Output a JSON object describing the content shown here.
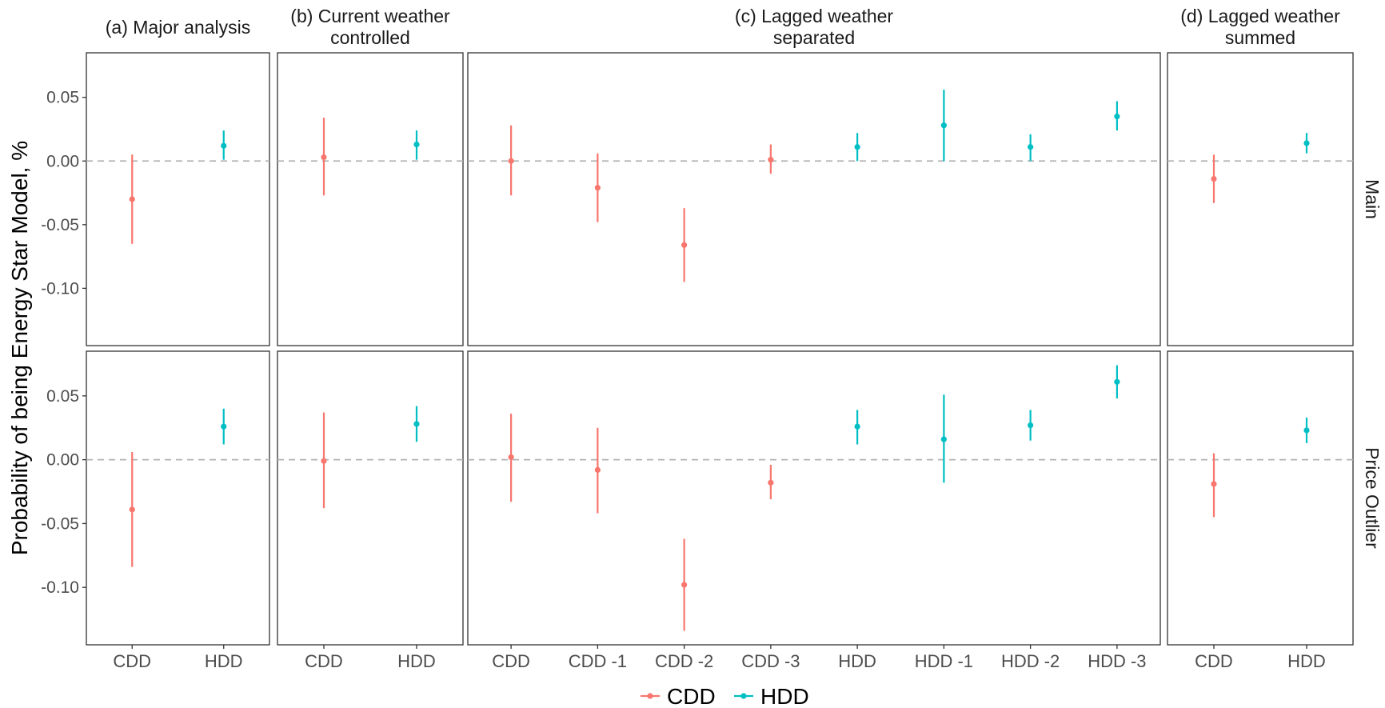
{
  "chart_data": {
    "type": "scatter",
    "style": "pointrange",
    "ylabel": "Probability of being Energy Star Model, %",
    "xlabel": "",
    "ylim": [
      -0.145,
      0.085
    ],
    "yticks": [
      -0.1,
      -0.05,
      0.0,
      0.05
    ],
    "ytick_labels": [
      "-0.10",
      "-0.05",
      "0.00",
      "0.05"
    ],
    "reference_line": {
      "y": 0,
      "style": "dashed",
      "color": "#b3b3b3"
    },
    "grid": false,
    "legend": {
      "position": "bottom",
      "entries": [
        "CDD",
        "HDD"
      ]
    },
    "colors": {
      "CDD": "#F8766D",
      "HDD": "#00BFC4"
    },
    "rows": [
      "Main",
      "Price Outlier"
    ],
    "panels": [
      {
        "title": [
          "(a) Major analysis"
        ],
        "categories": [
          "CDD",
          "HDD"
        ],
        "groups": [
          "CDD",
          "HDD"
        ],
        "data": {
          "Main": [
            {
              "est": -0.03,
              "lo": -0.065,
              "hi": 0.005
            },
            {
              "est": 0.012,
              "lo": 0.001,
              "hi": 0.024
            }
          ],
          "Price Outlier": [
            {
              "est": -0.039,
              "lo": -0.084,
              "hi": 0.006
            },
            {
              "est": 0.026,
              "lo": 0.012,
              "hi": 0.04
            }
          ]
        }
      },
      {
        "title": [
          "(b) Current weather",
          "controlled"
        ],
        "categories": [
          "CDD",
          "HDD"
        ],
        "groups": [
          "CDD",
          "HDD"
        ],
        "data": {
          "Main": [
            {
              "est": 0.003,
              "lo": -0.027,
              "hi": 0.034
            },
            {
              "est": 0.013,
              "lo": 0.001,
              "hi": 0.024
            }
          ],
          "Price Outlier": [
            {
              "est": -0.001,
              "lo": -0.038,
              "hi": 0.037
            },
            {
              "est": 0.028,
              "lo": 0.014,
              "hi": 0.042
            }
          ]
        }
      },
      {
        "title": [
          "(c) Lagged weather",
          "separated"
        ],
        "categories": [
          "CDD",
          "CDD -1",
          "CDD -2",
          "CDD -3",
          "HDD",
          "HDD -1",
          "HDD -2",
          "HDD -3"
        ],
        "groups": [
          "CDD",
          "CDD",
          "CDD",
          "CDD",
          "HDD",
          "HDD",
          "HDD",
          "HDD"
        ],
        "data": {
          "Main": [
            {
              "est": 0.0,
              "lo": -0.027,
              "hi": 0.028
            },
            {
              "est": -0.021,
              "lo": -0.048,
              "hi": 0.006
            },
            {
              "est": -0.066,
              "lo": -0.095,
              "hi": -0.037
            },
            {
              "est": 0.001,
              "lo": -0.01,
              "hi": 0.013
            },
            {
              "est": 0.011,
              "lo": 0.0,
              "hi": 0.022
            },
            {
              "est": 0.028,
              "lo": 0.0,
              "hi": 0.056
            },
            {
              "est": 0.011,
              "lo": 0.0,
              "hi": 0.021
            },
            {
              "est": 0.035,
              "lo": 0.024,
              "hi": 0.047
            }
          ],
          "Price Outlier": [
            {
              "est": 0.002,
              "lo": -0.033,
              "hi": 0.036
            },
            {
              "est": -0.008,
              "lo": -0.042,
              "hi": 0.025
            },
            {
              "est": -0.098,
              "lo": -0.134,
              "hi": -0.062
            },
            {
              "est": -0.018,
              "lo": -0.031,
              "hi": -0.004
            },
            {
              "est": 0.026,
              "lo": 0.012,
              "hi": 0.039
            },
            {
              "est": 0.016,
              "lo": -0.018,
              "hi": 0.051
            },
            {
              "est": 0.027,
              "lo": 0.015,
              "hi": 0.039
            },
            {
              "est": 0.061,
              "lo": 0.048,
              "hi": 0.074
            }
          ]
        }
      },
      {
        "title": [
          "(d) Lagged weather",
          "summed"
        ],
        "categories": [
          "CDD",
          "HDD"
        ],
        "groups": [
          "CDD",
          "HDD"
        ],
        "data": {
          "Main": [
            {
              "est": -0.014,
              "lo": -0.033,
              "hi": 0.005
            },
            {
              "est": 0.014,
              "lo": 0.006,
              "hi": 0.022
            }
          ],
          "Price Outlier": [
            {
              "est": -0.019,
              "lo": -0.045,
              "hi": 0.005
            },
            {
              "est": 0.023,
              "lo": 0.013,
              "hi": 0.033
            }
          ]
        }
      }
    ]
  }
}
